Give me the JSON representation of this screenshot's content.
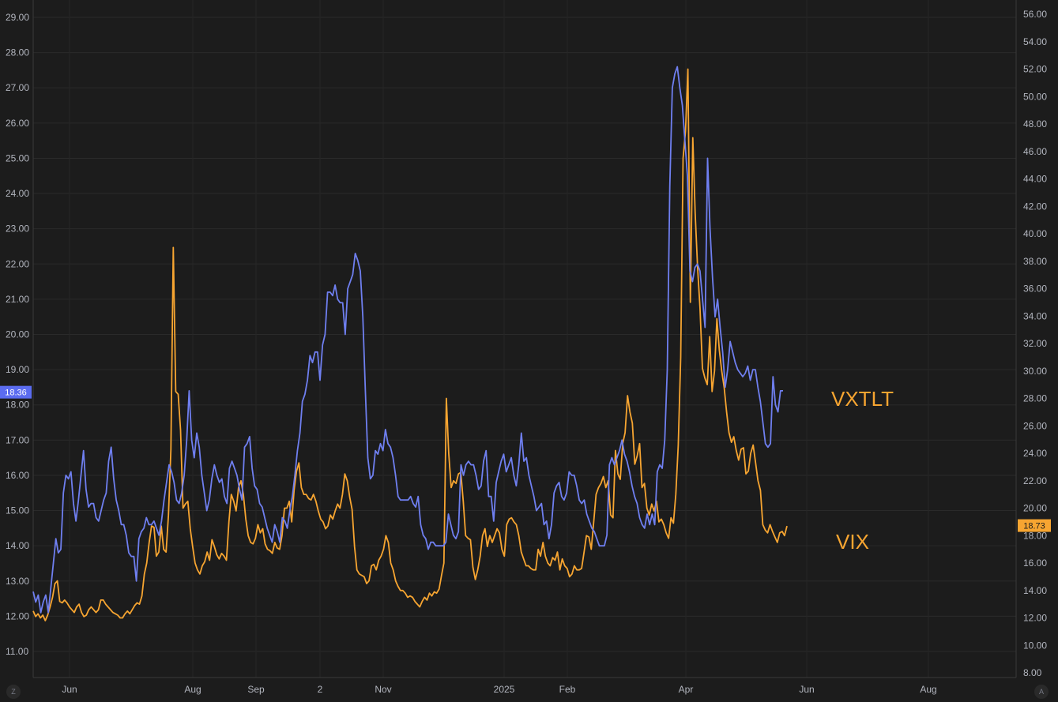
{
  "chart_data": {
    "type": "line",
    "x_tick_labels": [
      "Jun",
      "Aug",
      "Sep",
      "2",
      "Nov",
      "2025",
      "Feb",
      "Apr",
      "Jun",
      "Aug"
    ],
    "left_axis": {
      "ticks": [
        "29.00",
        "28.00",
        "27.00",
        "26.00",
        "25.00",
        "24.00",
        "23.00",
        "22.00",
        "21.00",
        "20.00",
        "19.00",
        "18.00",
        "17.00",
        "16.00",
        "15.00",
        "14.00",
        "13.00",
        "12.00",
        "11.00"
      ],
      "range": [
        10.3,
        29.5
      ]
    },
    "right_axis": {
      "ticks": [
        "56.00",
        "54.00",
        "52.00",
        "50.00",
        "48.00",
        "46.00",
        "44.00",
        "42.00",
        "40.00",
        "38.00",
        "36.00",
        "34.00",
        "32.00",
        "30.00",
        "28.00",
        "26.00",
        "24.00",
        "22.00",
        "20.00",
        "18.00",
        "16.00",
        "14.00",
        "12.00",
        "10.00",
        "8.00"
      ],
      "range": [
        7.7,
        56.8
      ]
    },
    "grid": true,
    "series": [
      {
        "name": "VXTLT",
        "axis": "left",
        "color": "#6f7ff0",
        "last_value_label": "18.36",
        "values": [
          12.7,
          12.4,
          12.6,
          12.1,
          12.4,
          12.6,
          12.1,
          12.8,
          13.5,
          14.2,
          13.8,
          13.9,
          15.5,
          16.0,
          15.9,
          16.1,
          15.2,
          14.7,
          15.3,
          16.0,
          16.7,
          15.6,
          15.1,
          15.2,
          15.2,
          14.8,
          14.7,
          15.0,
          15.3,
          15.5,
          16.4,
          16.8,
          15.9,
          15.3,
          15.0,
          14.6,
          14.6,
          14.3,
          13.8,
          13.7,
          13.7,
          13.0,
          14.2,
          14.4,
          14.5,
          14.8,
          14.6,
          14.6,
          14.7,
          14.5,
          14.3,
          14.7,
          15.3,
          15.8,
          16.3,
          16.1,
          15.8,
          15.3,
          15.2,
          15.5,
          16.0,
          17.0,
          18.4,
          17.0,
          16.5,
          17.2,
          16.8,
          16.0,
          15.5,
          15.0,
          15.3,
          15.9,
          16.3,
          16.0,
          15.8,
          15.9,
          15.4,
          15.2,
          16.2,
          16.4,
          16.2,
          16.0,
          15.6,
          15.3,
          16.8,
          16.9,
          17.1,
          16.2,
          15.7,
          15.6,
          15.2,
          15.1,
          14.8,
          14.5,
          14.3,
          14.1,
          14.6,
          14.4,
          14.1,
          14.8,
          14.7,
          14.5,
          15.0,
          15.4,
          16.0,
          16.7,
          17.2,
          18.1,
          18.3,
          18.7,
          19.4,
          19.2,
          19.5,
          19.5,
          18.7,
          19.7,
          20.0,
          21.2,
          21.2,
          21.1,
          21.4,
          21.0,
          20.9,
          20.9,
          20.0,
          21.3,
          21.5,
          21.7,
          22.3,
          22.1,
          21.8,
          20.5,
          18.4,
          16.5,
          15.9,
          16.0,
          16.7,
          16.6,
          16.9,
          16.7,
          17.3,
          16.9,
          16.8,
          16.5,
          16.0,
          15.4,
          15.3,
          15.3,
          15.3,
          15.3,
          15.4,
          15.2,
          15.1,
          15.4,
          14.6,
          14.3,
          14.2,
          13.9,
          14.1,
          14.1,
          14.0,
          14.0,
          14.0,
          14.0,
          14.1,
          14.9,
          14.6,
          14.3,
          14.2,
          14.4,
          16.3,
          16.0,
          16.3,
          16.4,
          16.3,
          16.3,
          16.0,
          15.6,
          15.7,
          16.4,
          16.7,
          15.4,
          15.4,
          14.7,
          15.8,
          16.1,
          16.4,
          16.6,
          16.1,
          16.3,
          16.5,
          16.0,
          15.7,
          16.3,
          17.2,
          16.4,
          16.5,
          16.0,
          15.7,
          15.4,
          15.0,
          15.1,
          15.2,
          14.6,
          14.7,
          14.2,
          14.6,
          15.5,
          15.7,
          15.8,
          15.4,
          15.3,
          15.5,
          16.1,
          16.0,
          16.0,
          15.7,
          15.3,
          15.2,
          15.3,
          14.9,
          14.7,
          14.5,
          14.4,
          14.2,
          14.0,
          14.0,
          14.0,
          14.3,
          16.3,
          16.5,
          16.3,
          16.5,
          16.7,
          17.0,
          16.6,
          16.4,
          16.1,
          15.7,
          15.4,
          15.2,
          14.8,
          14.6,
          14.5,
          14.9,
          14.6,
          14.9,
          14.6,
          16.1,
          16.3,
          16.2,
          17.0,
          19.0,
          24.2,
          27.0,
          27.4,
          27.6,
          27.0,
          26.5,
          25.5,
          24.5,
          21.8,
          21.5,
          21.9,
          22.0,
          21.8,
          21.0,
          20.2,
          25.0,
          23.0,
          21.6,
          20.5,
          21.0,
          20.2,
          19.5,
          18.5,
          19.0,
          19.8,
          19.5,
          19.2,
          19.0,
          18.9,
          18.8,
          18.9,
          19.1,
          18.7,
          19.0,
          19.0,
          18.5,
          18.1,
          17.5,
          16.9,
          16.8,
          16.9,
          18.8,
          18.0,
          17.8,
          18.4,
          18.4
        ],
        "x_start": 0,
        "x_end": 315
      },
      {
        "name": "VIX",
        "axis": "right",
        "color": "#f7a531",
        "last_value_label": "18.73",
        "values": [
          12.5,
          12.1,
          12.3,
          12.0,
          12.2,
          11.8,
          12.2,
          12.8,
          13.5,
          14.5,
          14.7,
          13.2,
          13.1,
          13.3,
          13.1,
          12.8,
          12.6,
          12.4,
          12.8,
          13.0,
          12.4,
          12.1,
          12.2,
          12.6,
          12.8,
          12.6,
          12.4,
          12.6,
          13.3,
          13.3,
          13.0,
          12.8,
          12.6,
          12.4,
          12.3,
          12.2,
          12.0,
          12.0,
          12.3,
          12.5,
          12.3,
          12.6,
          12.9,
          13.1,
          13.0,
          13.6,
          15.2,
          16.0,
          17.5,
          18.7,
          18.6,
          16.5,
          16.8,
          18.7,
          17.0,
          16.8,
          19.5,
          24.3,
          39.0,
          28.5,
          28.3,
          25.7,
          20.0,
          20.3,
          20.5,
          18.5,
          17.2,
          16.0,
          15.5,
          15.2,
          15.8,
          16.1,
          16.8,
          16.2,
          17.7,
          17.2,
          16.6,
          16.3,
          16.7,
          16.5,
          16.2,
          19.0,
          21.0,
          20.5,
          19.8,
          21.5,
          22.0,
          21.0,
          19.2,
          18.0,
          17.5,
          17.4,
          17.8,
          18.8,
          18.2,
          18.5,
          17.4,
          17.0,
          16.9,
          16.7,
          17.5,
          17.1,
          17.0,
          18.0,
          20.0,
          20.0,
          20.5,
          19.0,
          21.3,
          22.7,
          23.3,
          21.5,
          21.0,
          21.0,
          20.7,
          20.6,
          21.0,
          20.5,
          19.8,
          19.2,
          19.0,
          18.5,
          18.7,
          19.5,
          19.2,
          19.8,
          20.3,
          20.0,
          21.0,
          22.5,
          22.0,
          20.8,
          19.9,
          17.2,
          15.5,
          15.2,
          15.1,
          15.0,
          14.5,
          14.7,
          15.8,
          15.9,
          15.5,
          16.2,
          16.5,
          17.0,
          18.0,
          17.5,
          16.0,
          15.5,
          14.7,
          14.3,
          14.0,
          14.0,
          13.8,
          13.5,
          13.6,
          13.5,
          13.2,
          13.0,
          12.8,
          13.2,
          13.5,
          13.3,
          13.8,
          13.6,
          13.9,
          13.8,
          14.1,
          15.1,
          16.0,
          28.0,
          24.0,
          21.5,
          22.0,
          21.8,
          22.5,
          22.6,
          20.5,
          18.0,
          17.8,
          17.7,
          15.7,
          14.8,
          15.5,
          16.5,
          18.0,
          18.5,
          17.2,
          18.0,
          17.5,
          18.0,
          18.5,
          18.2,
          17.0,
          16.5,
          18.8,
          19.2,
          19.3,
          19.0,
          18.8,
          18.0,
          16.8,
          16.3,
          15.8,
          15.8,
          15.6,
          15.5,
          15.5,
          17.0,
          16.5,
          17.5,
          16.5,
          16.0,
          15.8,
          16.4,
          16.2,
          16.8,
          15.5,
          16.3,
          15.8,
          15.6,
          15.0,
          15.2,
          15.8,
          15.5,
          15.5,
          15.6,
          16.8,
          18.0,
          17.9,
          17.0,
          19.0,
          21.0,
          21.5,
          21.8,
          22.3,
          21.5,
          22.0,
          19.5,
          19.3,
          24.2,
          22.5,
          22.1,
          24.7,
          25.5,
          28.2,
          27.0,
          26.2,
          23.2,
          23.8,
          24.7,
          21.5,
          21.8,
          20.0,
          19.5,
          20.3,
          19.8,
          20.5,
          19.0,
          19.2,
          18.8,
          18.2,
          17.8,
          19.3,
          18.9,
          21.0,
          24.6,
          31.0,
          45.5,
          47.5,
          52.0,
          35.0,
          47.0,
          41.5,
          37.5,
          34.6,
          30.2,
          29.5,
          29.0,
          32.5,
          28.5,
          30.0,
          33.8,
          31.5,
          30.0,
          28.8,
          27.0,
          25.5,
          24.8,
          25.2,
          24.2,
          23.5,
          24.3,
          24.4,
          22.5,
          22.7,
          24.0,
          24.6,
          23.3,
          22.0,
          21.3,
          18.8,
          18.4,
          18.2,
          18.8,
          18.3,
          17.9,
          17.5,
          18.2,
          18.3,
          18.0,
          18.7
        ],
        "x_start": 0,
        "x_end": 320
      }
    ],
    "series_labels": [
      "VXTLT",
      "VIX"
    ],
    "corner_buttons": [
      "Z",
      "A"
    ]
  }
}
